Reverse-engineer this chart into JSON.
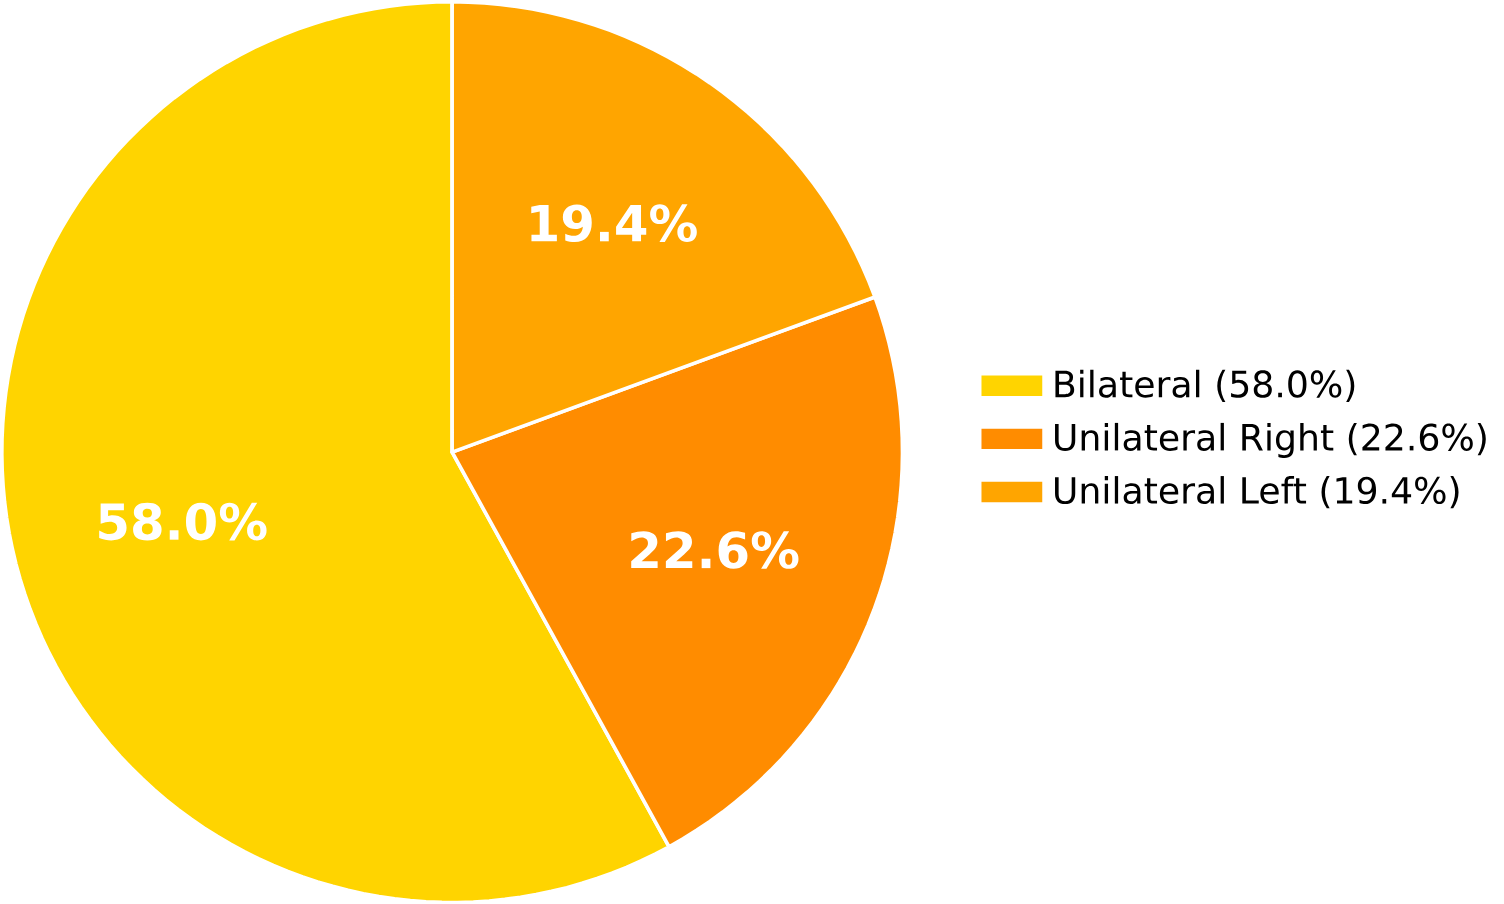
{
  "chart_data": {
    "type": "pie",
    "categories": [
      "Bilateral (58.0%)",
      "Unilateral Right (22.6%)",
      "Unilateral Left (19.4%)"
    ],
    "values": [
      58.0,
      22.6,
      19.4
    ],
    "value_labels": [
      "58.0%",
      "22.6%",
      "19.4%"
    ],
    "colors": [
      "#ffd400",
      "#ff8c00",
      "#ffa500"
    ],
    "legend": "right"
  }
}
